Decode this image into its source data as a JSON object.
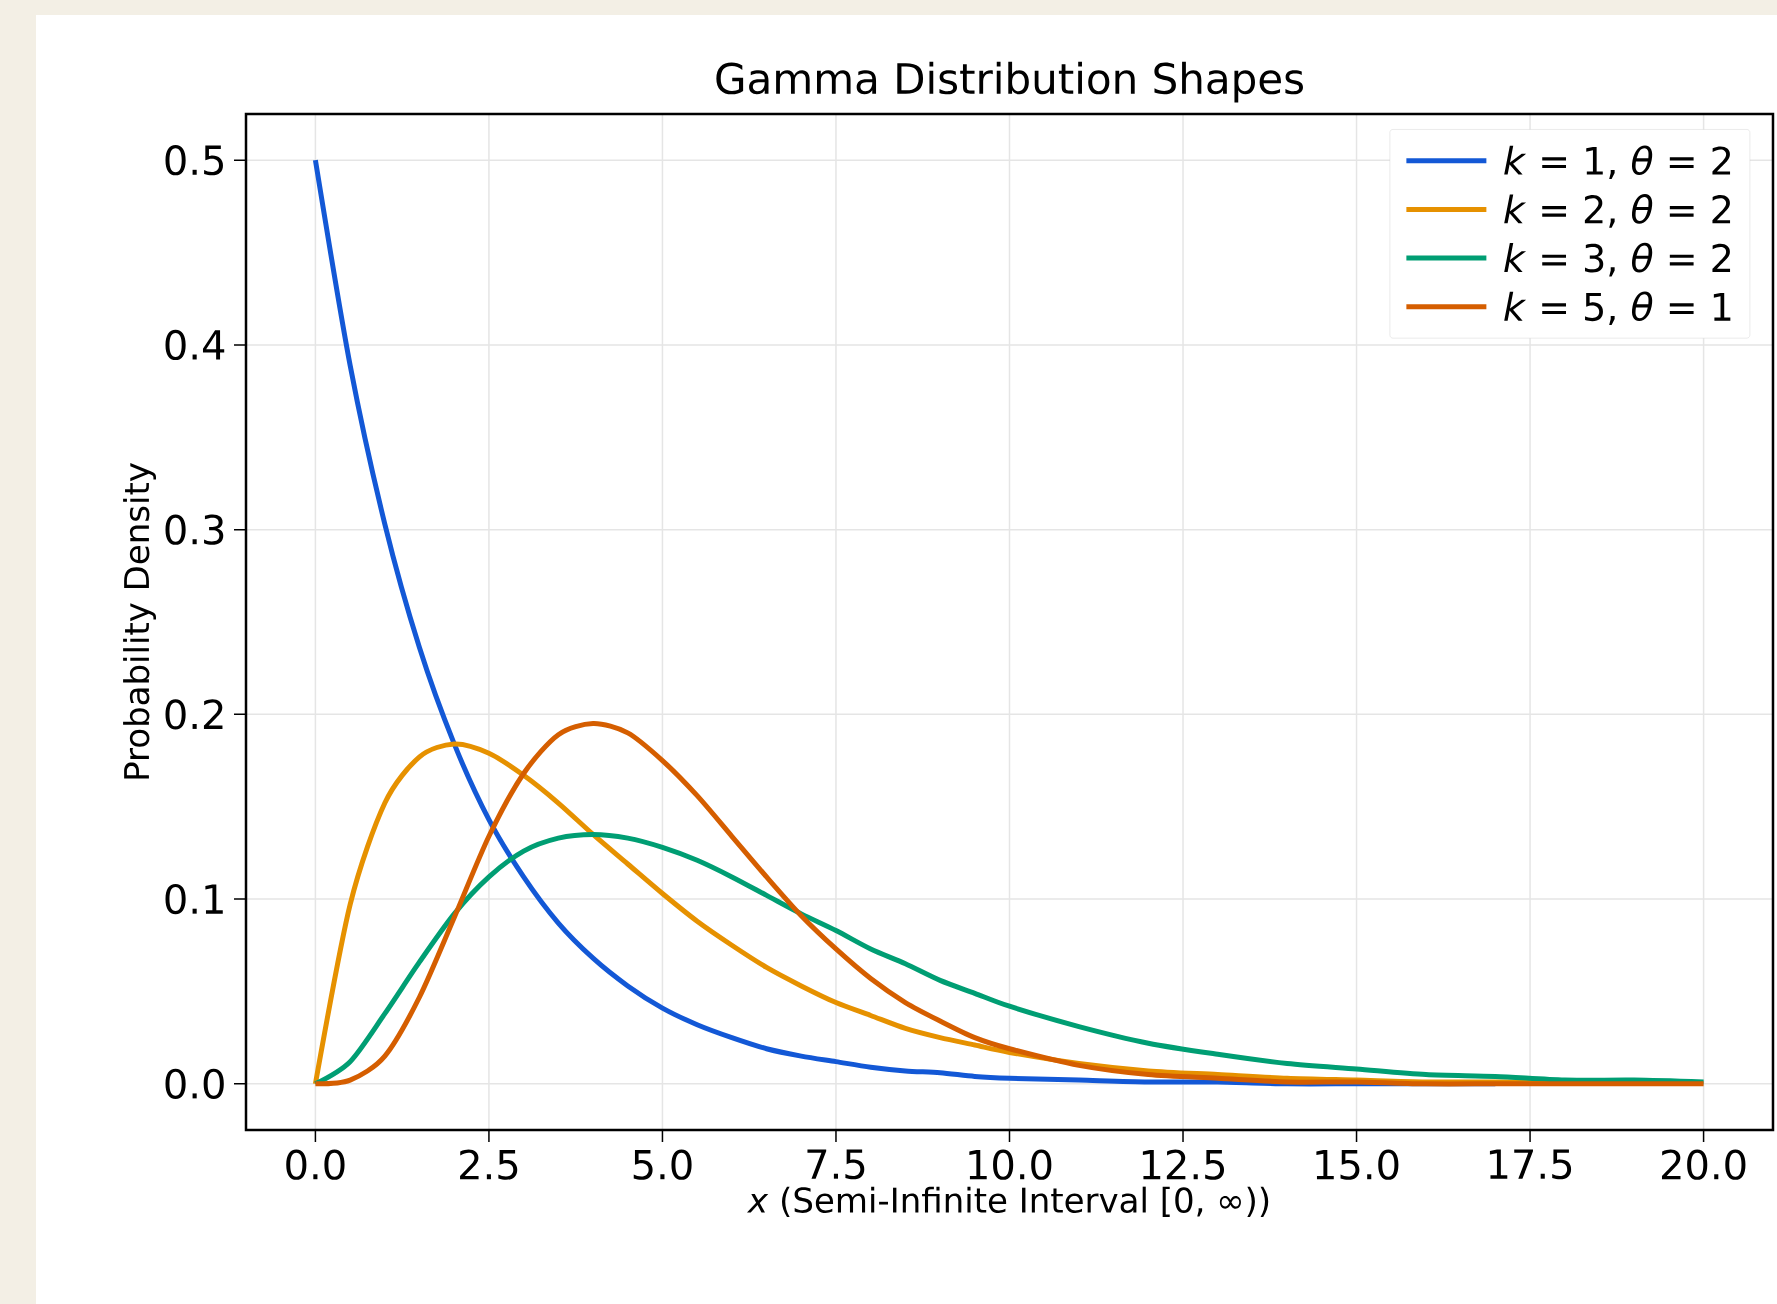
{
  "chart_data": {
    "type": "line",
    "title": "Gamma Distribution Shapes",
    "xlabel": "*x* (Semi-Infinite Interval [0, ∞))",
    "ylabel": "Probability Density",
    "x": [
      0,
      0.5,
      1,
      1.5,
      2,
      2.5,
      3,
      3.5,
      4,
      4.5,
      5,
      5.5,
      6,
      6.5,
      7,
      7.5,
      8,
      8.5,
      9,
      9.5,
      10,
      11,
      12,
      13,
      14,
      15,
      16,
      17,
      18,
      19,
      20
    ],
    "series": [
      {
        "name": "*k* = 1, *θ* = 2",
        "color": "#1358d6",
        "values": [
          0.5,
          0.389,
          0.303,
          0.236,
          0.184,
          0.143,
          0.112,
          0.087,
          0.068,
          0.053,
          0.041,
          0.032,
          0.025,
          0.019,
          0.015,
          0.012,
          0.009,
          0.007,
          0.006,
          0.004,
          0.003,
          0.002,
          0.001,
          0.001,
          0.0,
          0.0,
          0.0,
          0.0,
          null,
          null,
          null
        ]
      },
      {
        "name": "*k* = 2, *θ* = 2",
        "color": "#e69100",
        "values": [
          0,
          0.097,
          0.152,
          0.177,
          0.184,
          0.179,
          0.167,
          0.152,
          0.135,
          0.119,
          0.103,
          0.088,
          0.075,
          0.063,
          0.053,
          0.044,
          0.037,
          0.03,
          0.025,
          0.021,
          0.017,
          0.011,
          0.007,
          0.005,
          0.003,
          0.002,
          0.001,
          0.001,
          0.001,
          null,
          null
        ]
      },
      {
        "name": "*k* = 3, *θ* = 2",
        "color": "#009e73",
        "values": [
          0,
          0.012,
          0.038,
          0.066,
          0.092,
          0.112,
          0.126,
          0.133,
          0.135,
          0.133,
          0.128,
          0.121,
          0.112,
          0.102,
          0.092,
          0.083,
          0.073,
          0.065,
          0.056,
          0.049,
          0.042,
          0.031,
          0.022,
          0.016,
          0.011,
          0.008,
          0.005,
          0.004,
          0.002,
          0.002,
          0.001
        ]
      },
      {
        "name": "*k* = 5, *θ* = 1",
        "color": "#d55e00",
        "values": [
          0,
          0.002,
          0.015,
          0.047,
          0.09,
          0.134,
          0.168,
          0.189,
          0.195,
          0.19,
          0.175,
          0.156,
          0.134,
          0.112,
          0.091,
          0.073,
          0.057,
          0.044,
          0.034,
          0.025,
          0.019,
          0.01,
          0.005,
          0.003,
          0.001,
          0.001,
          0.0,
          0.0,
          0.0,
          0.0,
          0.0
        ]
      }
    ],
    "xlim": [
      -1,
      21
    ],
    "ylim": [
      -0.025,
      0.525
    ],
    "xticks": [
      {
        "value": 0,
        "label": "0.0"
      },
      2.5,
      {
        "value": 5,
        "label": "5.0"
      },
      7.5,
      {
        "value": 10,
        "label": "10.0"
      },
      12.5,
      {
        "value": 15,
        "label": "15.0"
      },
      17.5,
      {
        "value": 20,
        "label": "20.0"
      }
    ],
    "yticks": [
      {
        "value": 0,
        "label": "0.0"
      },
      0.1,
      0.2,
      0.3,
      0.4,
      0.5
    ],
    "grid": true,
    "legend": "top right",
    "line_style": "solid",
    "marker": "none"
  }
}
